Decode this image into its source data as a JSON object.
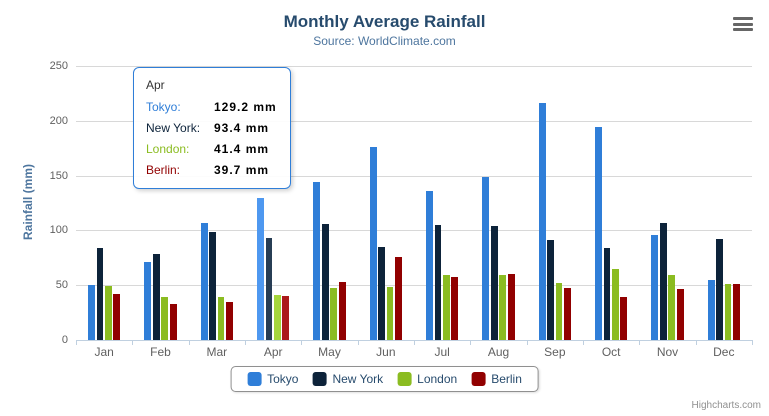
{
  "chart_data": {
    "type": "bar",
    "title": "Monthly Average Rainfall",
    "subtitle": "Source: WorldClimate.com",
    "xlabel": "",
    "ylabel": "Rainfall (mm)",
    "ylim": [
      0,
      250
    ],
    "yticks": [
      0,
      50,
      100,
      150,
      200,
      250
    ],
    "grid": true,
    "legend_position": "bottom",
    "categories": [
      "Jan",
      "Feb",
      "Mar",
      "Apr",
      "May",
      "Jun",
      "Jul",
      "Aug",
      "Sep",
      "Oct",
      "Nov",
      "Dec"
    ],
    "series": [
      {
        "name": "Tokyo",
        "color": "#2f7ed8",
        "hover_color": "#4e98f0",
        "values": [
          49.9,
          71.5,
          106.4,
          129.2,
          144.0,
          176.0,
          135.6,
          148.5,
          216.4,
          194.1,
          95.6,
          54.4
        ]
      },
      {
        "name": "New York",
        "color": "#0d233a",
        "hover_color": "#273d54",
        "values": [
          83.6,
          78.8,
          98.5,
          93.4,
          106.0,
          84.5,
          105.0,
          104.3,
          91.2,
          83.5,
          106.6,
          92.3
        ]
      },
      {
        "name": "London",
        "color": "#8bbc21",
        "hover_color": "#a5d63b",
        "values": [
          48.9,
          38.8,
          39.3,
          41.4,
          47.0,
          48.3,
          59.0,
          59.6,
          52.4,
          65.2,
          59.3,
          51.2
        ]
      },
      {
        "name": "Berlin",
        "color": "#910000",
        "hover_color": "#ab1a1a",
        "values": [
          42.4,
          33.2,
          34.5,
          39.7,
          52.6,
          75.5,
          57.4,
          60.4,
          47.6,
          39.1,
          46.8,
          51.1
        ]
      }
    ],
    "hovered_category": "Apr",
    "hovered_category_index": 3
  },
  "tooltip": {
    "header": "Apr",
    "border_color": "#2f7ed8",
    "rows": [
      {
        "label": "Tokyo:",
        "value": "129.2 mm"
      },
      {
        "label": "New York:",
        "value": "93.4 mm"
      },
      {
        "label": "London:",
        "value": "41.4 mm"
      },
      {
        "label": "Berlin:",
        "value": "39.7 mm"
      }
    ]
  },
  "credits": "Highcharts.com"
}
